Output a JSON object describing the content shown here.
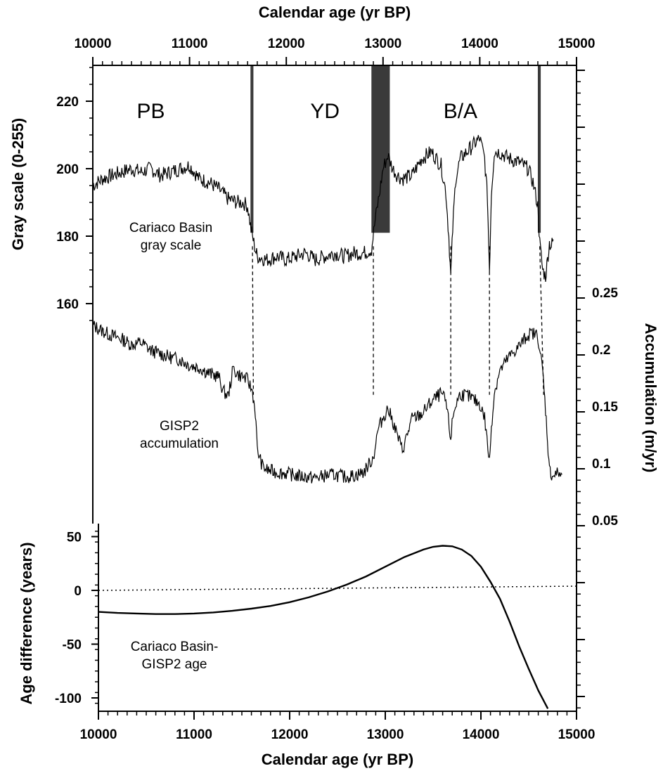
{
  "chart_data": {
    "type": "line",
    "top_axis": {
      "label": "Calendar age (yr BP)",
      "ticks": [
        "10000",
        "11000",
        "12000",
        "13000",
        "14000",
        "15000"
      ],
      "xlim": [
        10000,
        15000
      ]
    },
    "bottom_axis": {
      "label": "Calendar age (yr BP)",
      "ticks": [
        "10000",
        "11000",
        "12000",
        "13000",
        "14000",
        "15000"
      ],
      "xlim": [
        10000,
        15000
      ]
    },
    "left_upper_axis": {
      "label": "Gray scale (0-255)",
      "ticks": [
        "160",
        "180",
        "200",
        "220"
      ]
    },
    "left_lower_axis": {
      "label": "Age difference (years)",
      "ticks": [
        "50",
        "0",
        "-50",
        "-100"
      ]
    },
    "right_axis": {
      "label": "Accumulation (m/yr)",
      "ticks": [
        "0.05",
        "0.1",
        "0.15",
        "0.2",
        "0.25"
      ]
    },
    "periods": [
      {
        "label": "PB",
        "x": 10600
      },
      {
        "label": "YD",
        "x": 12400
      },
      {
        "label": "B/A",
        "x": 13800
      }
    ],
    "transition_bands": [
      {
        "from": 11630,
        "to": 11660
      },
      {
        "from": 12880,
        "to": 13070
      },
      {
        "from": 14600,
        "to": 14630
      }
    ],
    "correlation_lines": [
      {
        "gray_x": 11650,
        "acc_x": 11660
      },
      {
        "gray_x": 12900,
        "acc_x": 12900
      },
      {
        "gray_x": 13700,
        "acc_x": 13700
      },
      {
        "gray_x": 14100,
        "acc_x": 14100
      },
      {
        "gray_x": 14620,
        "acc_x": 14660
      }
    ],
    "annotations": {
      "gray_label": [
        "Cariaco Basin",
        "gray scale"
      ],
      "acc_label": [
        "GISP2",
        "accumulation"
      ],
      "diff_label": [
        "Cariaco Basin-",
        "GISP2 age"
      ]
    },
    "series": [
      {
        "id": "gray",
        "axis": "gray",
        "x": [
          10000,
          10100,
          10200,
          10300,
          10400,
          10500,
          10600,
          10700,
          10800,
          10900,
          11000,
          11100,
          11200,
          11300,
          11400,
          11500,
          11550,
          11600,
          11630,
          11650,
          11680,
          11700,
          11800,
          11900,
          12000,
          12100,
          12200,
          12300,
          12400,
          12500,
          12600,
          12700,
          12800,
          12880,
          12920,
          12960,
          13000,
          13050,
          13100,
          13150,
          13200,
          13300,
          13400,
          13500,
          13600,
          13650,
          13680,
          13700,
          13720,
          13750,
          13800,
          13900,
          14000,
          14050,
          14080,
          14100,
          14120,
          14150,
          14200,
          14300,
          14400,
          14500,
          14550,
          14600,
          14620,
          14650,
          14680,
          14700,
          14720,
          14740,
          14760
        ],
        "y": [
          195,
          197,
          198,
          199,
          200,
          199,
          200,
          198,
          199,
          200,
          201,
          197,
          196,
          194,
          191,
          190,
          190,
          189,
          183,
          180,
          176,
          174,
          173,
          174,
          173,
          174,
          175,
          173,
          174,
          175,
          174,
          175,
          175,
          176,
          185,
          192,
          200,
          204,
          200,
          198,
          197,
          198,
          203,
          205,
          201,
          193,
          180,
          168,
          182,
          197,
          203,
          206,
          209,
          203,
          191,
          170,
          193,
          205,
          205,
          203,
          202,
          200,
          196,
          189,
          178,
          170,
          168,
          173,
          178,
          177,
          179
        ]
      },
      {
        "id": "accumulation",
        "axis": "accumulation",
        "x": [
          10000,
          10100,
          10200,
          10300,
          10400,
          10500,
          10600,
          10700,
          10800,
          10900,
          11000,
          11100,
          11200,
          11300,
          11350,
          11400,
          11450,
          11500,
          11550,
          11600,
          11650,
          11680,
          11700,
          11750,
          11800,
          11900,
          12000,
          12100,
          12200,
          12300,
          12400,
          12500,
          12600,
          12700,
          12800,
          12900,
          12950,
          13000,
          13050,
          13100,
          13150,
          13200,
          13300,
          13400,
          13500,
          13600,
          13650,
          13700,
          13720,
          13750,
          13800,
          13900,
          14000,
          14050,
          14100,
          14120,
          14150,
          14200,
          14300,
          14400,
          14500,
          14550,
          14600,
          14650,
          14680,
          14700,
          14720,
          14750,
          14800,
          14850
        ],
        "y": [
          0.221,
          0.216,
          0.212,
          0.209,
          0.204,
          0.206,
          0.199,
          0.196,
          0.193,
          0.191,
          0.186,
          0.184,
          0.179,
          0.176,
          0.163,
          0.159,
          0.183,
          0.178,
          0.176,
          0.173,
          0.163,
          0.145,
          0.112,
          0.098,
          0.094,
          0.092,
          0.091,
          0.089,
          0.088,
          0.087,
          0.089,
          0.09,
          0.088,
          0.089,
          0.092,
          0.105,
          0.13,
          0.14,
          0.148,
          0.137,
          0.124,
          0.111,
          0.139,
          0.143,
          0.154,
          0.161,
          0.154,
          0.121,
          0.14,
          0.151,
          0.161,
          0.158,
          0.152,
          0.14,
          0.101,
          0.132,
          0.161,
          0.18,
          0.193,
          0.202,
          0.213,
          0.214,
          0.212,
          0.181,
          0.147,
          0.121,
          0.094,
          0.089,
          0.091,
          0.09
        ]
      },
      {
        "id": "age_difference",
        "axis": "diff",
        "x": [
          10000,
          10200,
          10400,
          10600,
          10800,
          11000,
          11200,
          11400,
          11600,
          11800,
          12000,
          12200,
          12400,
          12600,
          12800,
          13000,
          13200,
          13400,
          13500,
          13600,
          13700,
          13800,
          13900,
          14000,
          14100,
          14200,
          14300,
          14400,
          14500,
          14600,
          14700
        ],
        "y": [
          -20,
          -21,
          -21.5,
          -22,
          -22,
          -21.5,
          -20.5,
          -19,
          -17,
          -14.5,
          -11,
          -6.5,
          -1,
          5.5,
          13,
          22,
          31,
          38,
          40.5,
          41.5,
          41,
          38,
          32,
          22,
          8,
          -8,
          -29,
          -52,
          -73,
          -93,
          -110
        ]
      },
      {
        "id": "zero_line",
        "axis": "diff",
        "x": [
          10000,
          15000
        ],
        "y": [
          0,
          0
        ]
      }
    ]
  }
}
